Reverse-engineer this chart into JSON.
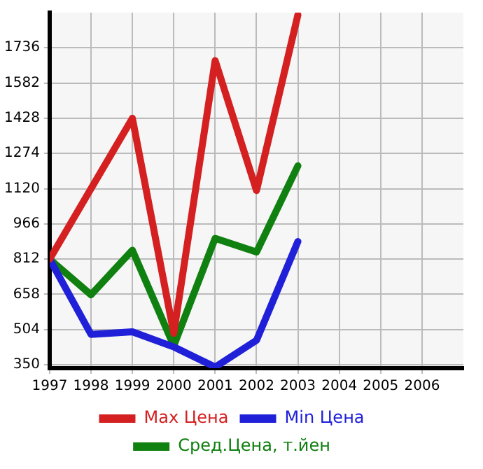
{
  "chart_data": {
    "type": "line",
    "x": [
      1997,
      1998,
      1999,
      2000,
      2001,
      2002,
      2003
    ],
    "series": [
      {
        "name": "Max Цена",
        "color": "#d42020",
        "values": [
          812,
          1120,
          1428,
          488,
          1680,
          1112,
          1880
        ]
      },
      {
        "name": "Min Цена",
        "color": "#2020d8",
        "values": [
          812,
          483,
          494,
          428,
          340,
          457,
          889
        ]
      },
      {
        "name": "Сред.Цена, т.йен",
        "color": "#108010",
        "values": [
          812,
          656,
          851,
          433,
          903,
          843,
          1220
        ]
      }
    ],
    "xlim": [
      1997,
      2007
    ],
    "xticks": [
      1997,
      1998,
      1999,
      2000,
      2001,
      2002,
      2003,
      2004,
      2005,
      2006
    ],
    "ylim": [
      335,
      1890
    ],
    "yticks": [
      350,
      504,
      658,
      812,
      966,
      1120,
      1274,
      1428,
      1582,
      1736
    ],
    "grid": true,
    "legend": "bottom",
    "marker": "none",
    "line_style": "solid"
  }
}
